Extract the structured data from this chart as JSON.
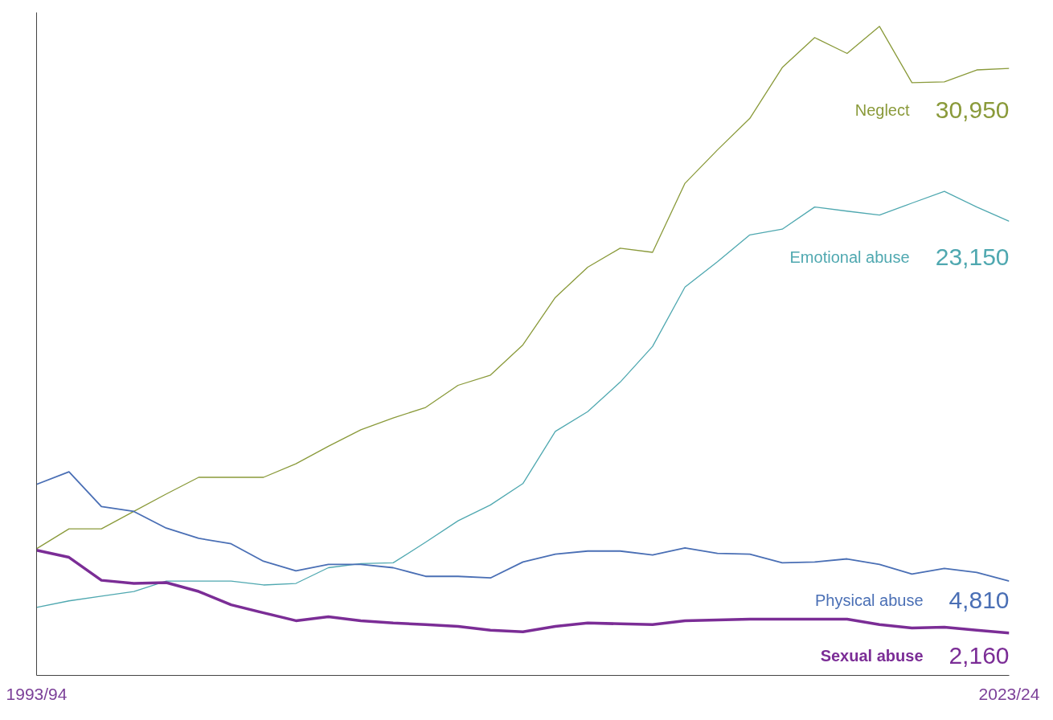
{
  "chart_data": {
    "type": "line",
    "categories": [
      "1993/94",
      null,
      null,
      null,
      null,
      null,
      null,
      null,
      null,
      null,
      null,
      null,
      null,
      null,
      null,
      null,
      null,
      null,
      null,
      null,
      null,
      null,
      null,
      null,
      null,
      null,
      null,
      null,
      null,
      null,
      "2023/24"
    ],
    "ylim": [
      0,
      33800
    ],
    "tick_labels": "x",
    "series": [
      {
        "name": "Neglect",
        "color": "#8a9a3a",
        "values": [
          6460,
          7470,
          7470,
          8360,
          9250,
          10100,
          10100,
          10100,
          10790,
          11680,
          12520,
          13130,
          13660,
          14790,
          15310,
          16850,
          19270,
          20810,
          21780,
          21570,
          25090,
          26790,
          28400,
          30990,
          32520,
          31710,
          33090,
          30220,
          30260,
          30870,
          30950
        ],
        "value_labels": [
          null,
          null,
          null,
          null,
          null,
          null,
          null,
          null,
          null,
          null,
          null,
          null,
          null,
          null,
          null,
          null,
          null,
          null,
          null,
          null,
          null,
          null,
          null,
          null,
          null,
          null,
          null,
          null,
          null,
          null,
          "30,950"
        ]
      },
      {
        "name": "Emotional abuse",
        "color": "#4fa8b0",
        "values": [
          3470,
          3800,
          4040,
          4280,
          4810,
          4810,
          4810,
          4610,
          4690,
          5490,
          5700,
          5740,
          6790,
          7880,
          8690,
          9780,
          12440,
          13450,
          14950,
          16770,
          19800,
          21090,
          22460,
          22750,
          23880,
          23670,
          23470,
          24080,
          24680,
          23880,
          23150
        ],
        "value_labels": [
          null,
          null,
          null,
          null,
          null,
          null,
          null,
          null,
          null,
          null,
          null,
          null,
          null,
          null,
          null,
          null,
          null,
          null,
          null,
          null,
          null,
          null,
          null,
          null,
          null,
          null,
          null,
          null,
          null,
          null,
          "23,150"
        ]
      },
      {
        "name": "Physical abuse",
        "color": "#4a6fb5",
        "values": [
          9740,
          10380,
          8610,
          8360,
          7510,
          6990,
          6710,
          5820,
          5330,
          5660,
          5660,
          5490,
          5050,
          5050,
          4970,
          5780,
          6180,
          6340,
          6340,
          6140,
          6500,
          6220,
          6180,
          5740,
          5780,
          5940,
          5660,
          5170,
          5450,
          5250,
          4810
        ],
        "value_labels": [
          null,
          null,
          null,
          null,
          null,
          null,
          null,
          null,
          null,
          null,
          null,
          null,
          null,
          null,
          null,
          null,
          null,
          null,
          null,
          null,
          null,
          null,
          null,
          null,
          null,
          null,
          null,
          null,
          null,
          null,
          "4,810"
        ]
      },
      {
        "name": "Sexual abuse",
        "color": "#7b2d96",
        "values": [
          6380,
          6020,
          4850,
          4690,
          4730,
          4280,
          3600,
          3190,
          2790,
          2990,
          2790,
          2670,
          2590,
          2500,
          2300,
          2220,
          2500,
          2670,
          2630,
          2590,
          2790,
          2830,
          2870,
          2870,
          2870,
          2870,
          2590,
          2420,
          2460,
          2300,
          2160
        ],
        "value_labels": [
          null,
          null,
          null,
          null,
          null,
          null,
          null,
          null,
          null,
          null,
          null,
          null,
          null,
          null,
          null,
          null,
          null,
          null,
          null,
          null,
          null,
          null,
          null,
          null,
          null,
          null,
          null,
          null,
          null,
          null,
          "2,160"
        ]
      }
    ]
  }
}
